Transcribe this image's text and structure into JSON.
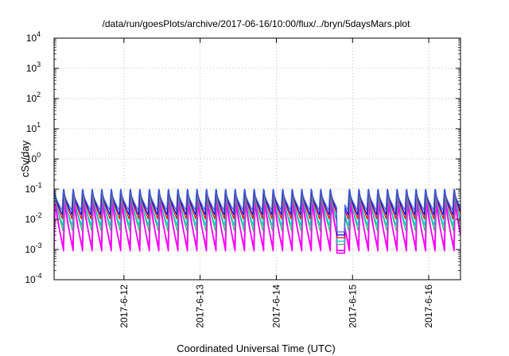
{
  "chart_data": {
    "type": "line",
    "title": "/data/run/goesPlots/archive/2017-06-16/10:00/flux/../bryn/5daysMars.plot",
    "xlabel": "Coordinated Universal Time (UTC)",
    "ylabel": "cSv/day",
    "yscale": "log",
    "ylim": [
      0.0001,
      10000
    ],
    "xlim": [
      "2017-06-11 02:00",
      "2017-06-16 10:00"
    ],
    "grid": true,
    "y_ticks": [
      {
        "value": 0.0001,
        "base": "10",
        "exp": "-4"
      },
      {
        "value": 0.001,
        "base": "10",
        "exp": "-3"
      },
      {
        "value": 0.01,
        "base": "10",
        "exp": "-2"
      },
      {
        "value": 0.1,
        "base": "10",
        "exp": "-1"
      },
      {
        "value": 1,
        "base": "10",
        "exp": "0"
      },
      {
        "value": 10,
        "base": "10",
        "exp": "1"
      },
      {
        "value": 100,
        "base": "10",
        "exp": "2"
      },
      {
        "value": 1000,
        "base": "10",
        "exp": "3"
      },
      {
        "value": 10000,
        "base": "10",
        "exp": "4"
      }
    ],
    "x_ticks": [
      {
        "date": "2017-06-12",
        "label": "2017-6-12"
      },
      {
        "date": "2017-06-13",
        "label": "2017-6-13"
      },
      {
        "date": "2017-06-14",
        "label": "2017-6-14"
      },
      {
        "date": "2017-06-15",
        "label": "2017-6-15"
      },
      {
        "date": "2017-06-16",
        "label": "2017-6-16"
      }
    ],
    "sawtooth_period_hours": 3,
    "series": [
      {
        "color": "#ff00ff",
        "peak": 0.07,
        "trough": 0.0009
      },
      {
        "color": "#ff00ff",
        "peak": 0.05,
        "trough": 0.0012
      },
      {
        "color": "#3cb371",
        "peak": 0.09,
        "trough": 0.004
      },
      {
        "color": "#00c8c8",
        "peak": 0.08,
        "trough": 0.006
      },
      {
        "color": "#ff0000",
        "peak": 0.1,
        "trough": 0.01
      },
      {
        "color": "#0000ff",
        "peak": 0.11,
        "trough": 0.014
      },
      {
        "color": "#4169e1",
        "peak": 0.1,
        "trough": 0.02
      }
    ],
    "dip_event": {
      "start": "2017-06-14 19:00",
      "end": "2017-06-14 21:30",
      "min": 0.0007
    }
  }
}
